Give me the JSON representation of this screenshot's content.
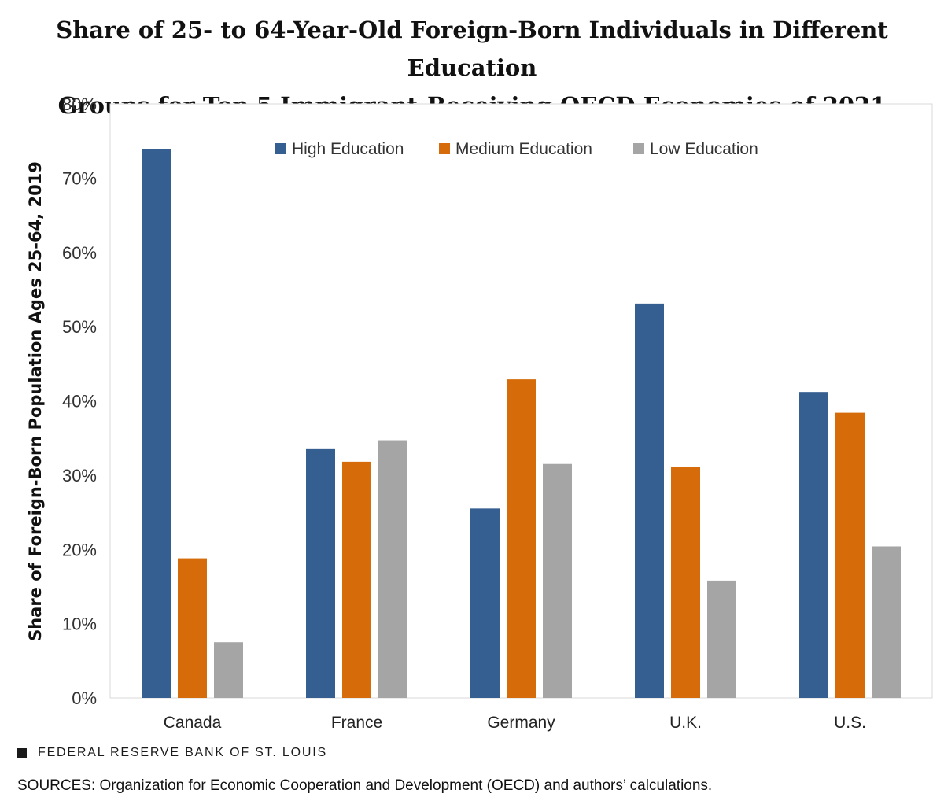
{
  "chart_data": {
    "type": "bar",
    "title_lines": [
      "Share of 25- to 64-Year-Old Foreign-Born Individuals in Different Education",
      "Groups for Top 5 Immigrant-Receiving OECD Economies of 2021"
    ],
    "ylabel": "Share of Foreign-Born  Population  Ages 25-64, 2019",
    "xlabel": "",
    "ylim": [
      0,
      80
    ],
    "yticks": [
      0,
      10,
      20,
      30,
      40,
      50,
      60,
      70,
      80
    ],
    "ytick_labels": [
      "0%",
      "10%",
      "20%",
      "30%",
      "40%",
      "50%",
      "60%",
      "70%",
      "80%"
    ],
    "categories": [
      "Canada",
      "France",
      "Germany",
      "U.K.",
      "U.S."
    ],
    "series": [
      {
        "name": "High Education",
        "color": "#365f91",
        "values": [
          73.9,
          33.5,
          25.5,
          53.1,
          41.2
        ]
      },
      {
        "name": "Medium Education",
        "color": "#d66b0a",
        "values": [
          18.8,
          31.8,
          42.9,
          31.1,
          38.4
        ]
      },
      {
        "name": "Low Education",
        "color": "#a5a5a5",
        "values": [
          7.5,
          34.7,
          31.5,
          15.8,
          20.4
        ]
      }
    ],
    "legend_position": "top-center",
    "grid": false
  },
  "footer": {
    "brand": "FEDERAL RESERVE BANK OF ST. LOUIS",
    "sources": "SOURCES: Organization for Economic Cooperation and Development (OECD) and authors’ calculations."
  }
}
